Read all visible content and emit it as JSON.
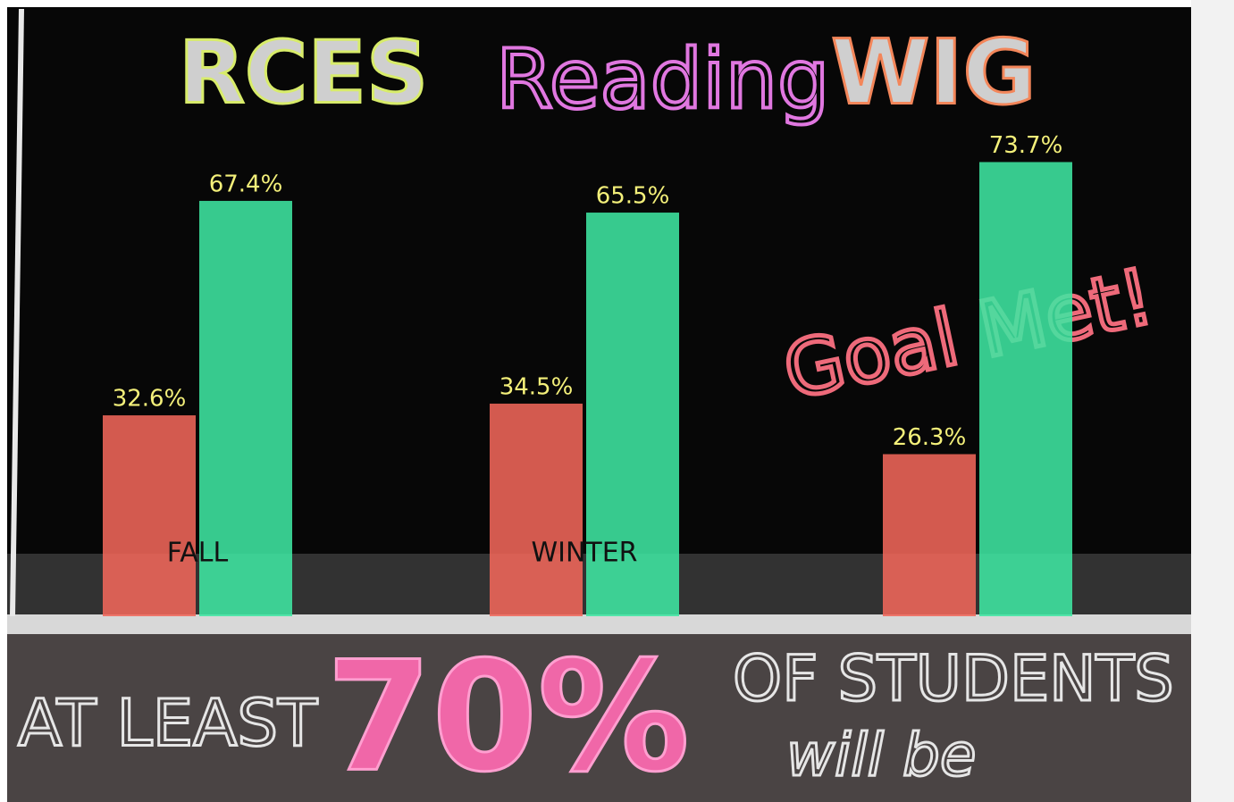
{
  "chart_data": {
    "type": "bar",
    "title": [
      "RCES",
      "Reading",
      "WIG"
    ],
    "categories": [
      "FALL",
      "WINTER",
      null
    ],
    "series": [
      {
        "color": "#f0675a",
        "values": [
          32.6,
          34.5,
          26.3
        ],
        "value_labels": [
          "32.6%",
          "34.5%",
          "26.3%"
        ]
      },
      {
        "color": "#3fe6a2",
        "values": [
          67.4,
          65.5,
          73.7
        ],
        "value_labels": [
          "67.4%",
          "65.5%",
          "73.7%"
        ]
      }
    ],
    "ylim": [
      0,
      100
    ],
    "annotations": [
      "Goal Met!",
      "AT LEAST",
      "70%",
      "OF STUDENTS",
      "will be"
    ]
  }
}
